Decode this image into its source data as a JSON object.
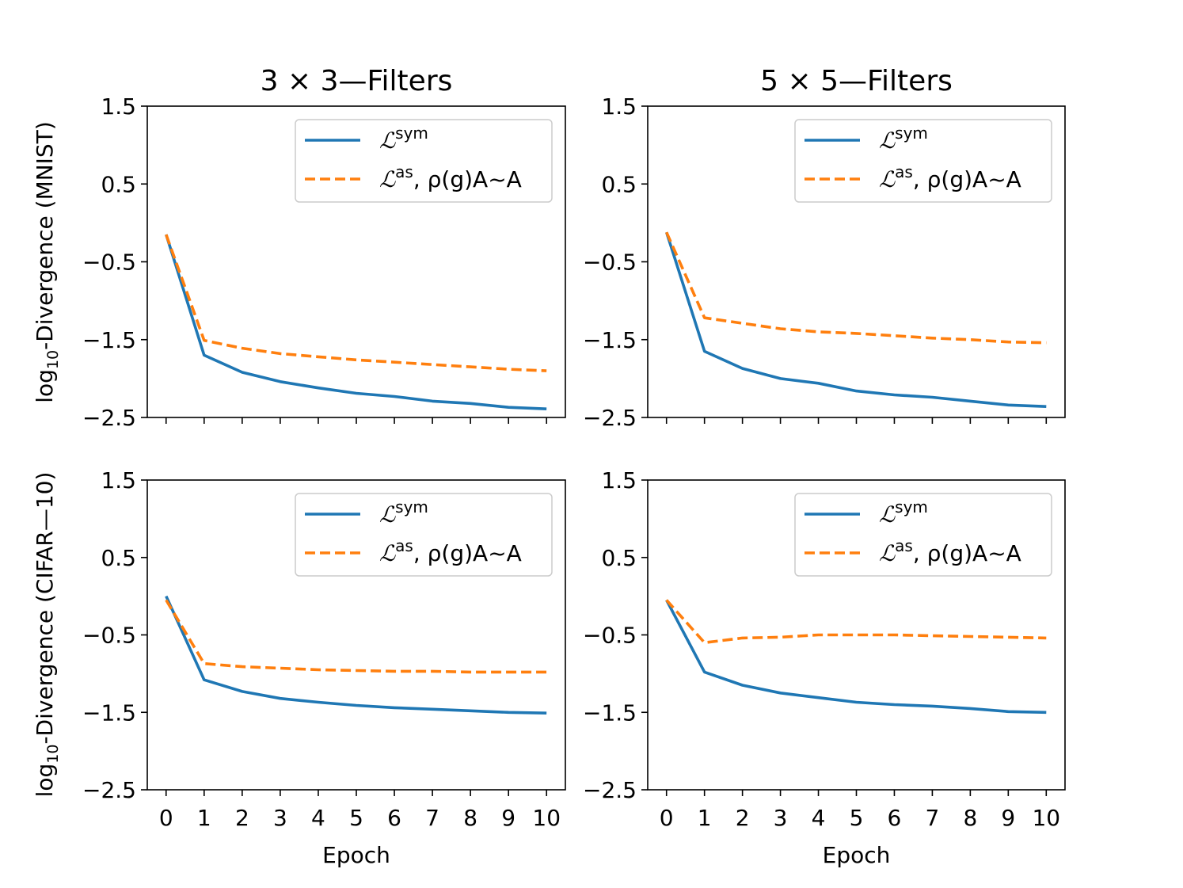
{
  "colors": {
    "sym": "#1f77b4",
    "as": "#ff7f0e"
  },
  "legend": {
    "sym": {
      "symbol": "ℒ",
      "sup": "sym",
      "suffix": ""
    },
    "as": {
      "symbol": "ℒ",
      "sup": "as",
      "suffix": ", ρ(g)A~A"
    }
  },
  "row_labels": {
    "top": {
      "prefix": "log",
      "sub": "10",
      "suffix": "-Divergence (MNIST)"
    },
    "bottom": {
      "prefix": "log",
      "sub": "10",
      "suffix": "-Divergence (CIFAR—10)"
    }
  },
  "chart_data": [
    {
      "type": "line",
      "title": "3 × 3—Filters",
      "xlabel": "",
      "ylabel": "log10-Divergence (MNIST)",
      "x": [
        0,
        1,
        2,
        3,
        4,
        5,
        6,
        7,
        8,
        9,
        10
      ],
      "xticks": [
        "0",
        "1",
        "2",
        "3",
        "4",
        "5",
        "6",
        "7",
        "8",
        "9",
        "10"
      ],
      "show_xtick_labels": false,
      "yticks": [
        "1.5",
        "0.5",
        "−0.5",
        "−1.5",
        "−2.5"
      ],
      "ylim": [
        -2.5,
        1.5
      ],
      "grid": false,
      "legend_position": "upper right",
      "series": [
        {
          "name": "ℒsym",
          "style": "solid",
          "values": [
            -0.15,
            -1.7,
            -1.92,
            -2.04,
            -2.12,
            -2.19,
            -2.23,
            -2.29,
            -2.32,
            -2.37,
            -2.39
          ]
        },
        {
          "name": "ℒas, ρ(g)A~A",
          "style": "dashed",
          "values": [
            -0.15,
            -1.51,
            -1.61,
            -1.68,
            -1.72,
            -1.76,
            -1.79,
            -1.82,
            -1.85,
            -1.88,
            -1.9
          ]
        }
      ]
    },
    {
      "type": "line",
      "title": "5 × 5—Filters",
      "xlabel": "",
      "ylabel": "",
      "x": [
        0,
        1,
        2,
        3,
        4,
        5,
        6,
        7,
        8,
        9,
        10
      ],
      "xticks": [
        "0",
        "1",
        "2",
        "3",
        "4",
        "5",
        "6",
        "7",
        "8",
        "9",
        "10"
      ],
      "show_xtick_labels": false,
      "yticks": [
        "1.5",
        "0.5",
        "−0.5",
        "−1.5",
        "−2.5"
      ],
      "ylim": [
        -2.5,
        1.5
      ],
      "grid": false,
      "legend_position": "upper right",
      "series": [
        {
          "name": "ℒsym",
          "style": "solid",
          "values": [
            -0.12,
            -1.65,
            -1.87,
            -2.0,
            -2.06,
            -2.16,
            -2.21,
            -2.24,
            -2.29,
            -2.34,
            -2.36
          ]
        },
        {
          "name": "ℒas, ρ(g)A~A",
          "style": "dashed",
          "values": [
            -0.12,
            -1.22,
            -1.29,
            -1.36,
            -1.4,
            -1.42,
            -1.45,
            -1.48,
            -1.5,
            -1.53,
            -1.54
          ]
        }
      ]
    },
    {
      "type": "line",
      "title": "",
      "xlabel": "Epoch",
      "ylabel": "log10-Divergence (CIFAR—10)",
      "x": [
        0,
        1,
        2,
        3,
        4,
        5,
        6,
        7,
        8,
        9,
        10
      ],
      "xticks": [
        "0",
        "1",
        "2",
        "3",
        "4",
        "5",
        "6",
        "7",
        "8",
        "9",
        "10"
      ],
      "show_xtick_labels": true,
      "yticks": [
        "1.5",
        "0.5",
        "−0.5",
        "−1.5",
        "−2.5"
      ],
      "ylim": [
        -2.5,
        1.5
      ],
      "grid": false,
      "legend_position": "upper right",
      "series": [
        {
          "name": "ℒsym",
          "style": "solid",
          "values": [
            0.0,
            -1.08,
            -1.23,
            -1.32,
            -1.37,
            -1.41,
            -1.44,
            -1.46,
            -1.48,
            -1.5,
            -1.51
          ]
        },
        {
          "name": "ℒas, ρ(g)A~A",
          "style": "dashed",
          "values": [
            -0.05,
            -0.87,
            -0.91,
            -0.93,
            -0.95,
            -0.96,
            -0.97,
            -0.97,
            -0.98,
            -0.98,
            -0.98
          ]
        }
      ]
    },
    {
      "type": "line",
      "title": "",
      "xlabel": "Epoch",
      "ylabel": "",
      "x": [
        0,
        1,
        2,
        3,
        4,
        5,
        6,
        7,
        8,
        9,
        10
      ],
      "xticks": [
        "0",
        "1",
        "2",
        "3",
        "4",
        "5",
        "6",
        "7",
        "8",
        "9",
        "10"
      ],
      "show_xtick_labels": true,
      "yticks": [
        "1.5",
        "0.5",
        "−0.5",
        "−1.5",
        "−2.5"
      ],
      "ylim": [
        -2.5,
        1.5
      ],
      "grid": false,
      "legend_position": "upper right",
      "series": [
        {
          "name": "ℒsym",
          "style": "solid",
          "values": [
            -0.05,
            -0.98,
            -1.15,
            -1.25,
            -1.31,
            -1.37,
            -1.4,
            -1.42,
            -1.45,
            -1.49,
            -1.5
          ]
        },
        {
          "name": "ℒas, ρ(g)A~A",
          "style": "dashed",
          "values": [
            -0.05,
            -0.6,
            -0.54,
            -0.53,
            -0.5,
            -0.5,
            -0.5,
            -0.51,
            -0.52,
            -0.53,
            -0.54
          ]
        }
      ]
    }
  ]
}
